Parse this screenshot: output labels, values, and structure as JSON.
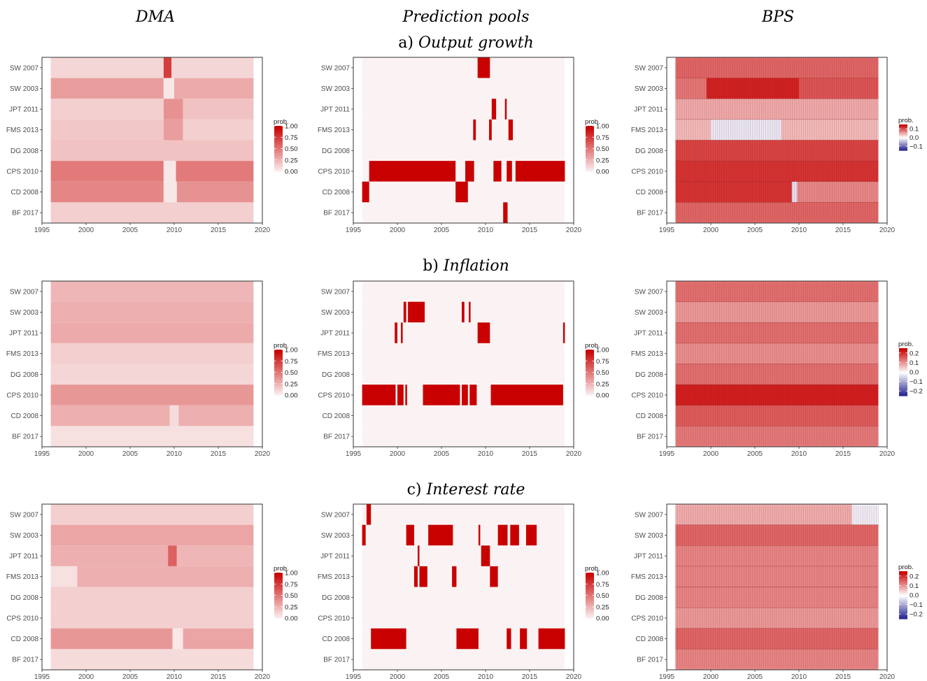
{
  "column_titles": [
    "DMA",
    "Prediction pools",
    "BPS"
  ],
  "row_titles": [
    {
      "prefix": "a)",
      "label": "Output growth"
    },
    {
      "prefix": "b)",
      "label": "Inflation"
    },
    {
      "prefix": "c)",
      "label": "Interest rate"
    }
  ],
  "legend_title": "prob.",
  "colors": {
    "high": "#c80000",
    "low": "#fbf3f3",
    "zero": "#ffffff",
    "negative": "#1a1a8c",
    "border": "#333333"
  },
  "chart_data": [
    {
      "type": "heatmap",
      "panel": "a) Output growth",
      "method": "DMA",
      "models": [
        "SW 2007",
        "SW 2003",
        "JPT 2011",
        "FMS 2013",
        "DG 2008",
        "CPS 2010",
        "CD 2008",
        "BF 2017"
      ],
      "x_ticks": [
        1995,
        2000,
        2005,
        2010,
        2015,
        2020
      ],
      "xlim": [
        1995,
        2020
      ],
      "period": [
        1996,
        2019
      ],
      "legend": {
        "ticks": [
          "1.00",
          "0.75",
          "0.50",
          "0.25",
          "0.00"
        ],
        "range": [
          0,
          1
        ]
      },
      "levels": [
        [
          [
            1996,
            2008.8,
            0.12
          ],
          [
            2008.8,
            2009.7,
            0.75
          ],
          [
            2009.7,
            2019,
            0.12
          ]
        ],
        [
          [
            1996,
            2008.8,
            0.35
          ],
          [
            2008.8,
            2010,
            0.05
          ],
          [
            2010,
            2019,
            0.3
          ]
        ],
        [
          [
            1996,
            2008.8,
            0.15
          ],
          [
            2008.8,
            2011,
            0.4
          ],
          [
            2011,
            2019,
            0.2
          ]
        ],
        [
          [
            1996,
            2008.8,
            0.18
          ],
          [
            2008.8,
            2011,
            0.35
          ],
          [
            2011,
            2019,
            0.15
          ]
        ],
        [
          [
            1996,
            2019,
            0.2
          ]
        ],
        [
          [
            1996,
            2008.8,
            0.5
          ],
          [
            2008.8,
            2010.2,
            0.05
          ],
          [
            2010.2,
            2019,
            0.5
          ]
        ],
        [
          [
            1996,
            2008.8,
            0.45
          ],
          [
            2008.8,
            2010.3,
            0.05
          ],
          [
            2010.3,
            2019,
            0.4
          ]
        ],
        [
          [
            1996,
            2019,
            0.15
          ]
        ]
      ]
    },
    {
      "type": "heatmap",
      "panel": "a) Output growth",
      "method": "Prediction pools",
      "models": [
        "SW 2007",
        "SW 2003",
        "JPT 2011",
        "FMS 2013",
        "DG 2008",
        "CPS 2010",
        "CD 2008",
        "BF 2017"
      ],
      "x_ticks": [
        1995,
        2000,
        2005,
        2010,
        2015,
        2020
      ],
      "xlim": [
        1995,
        2020
      ],
      "period": [
        1996,
        2019
      ],
      "legend": {
        "ticks": [
          "1.00",
          "0.75",
          "0.50",
          "0.25",
          "0.00"
        ],
        "range": [
          0,
          1
        ]
      },
      "levels": [
        [
          [
            2009.1,
            2010.5,
            1
          ]
        ],
        [],
        [
          [
            2010.7,
            2011.2,
            1
          ],
          [
            2012.2,
            2012.4,
            1
          ]
        ],
        [
          [
            2008.6,
            2008.9,
            1
          ],
          [
            2010.4,
            2010.7,
            1
          ],
          [
            2012.6,
            2013.1,
            1
          ]
        ],
        [],
        [
          [
            1996.8,
            2006.6,
            1
          ],
          [
            2007.7,
            2008.7,
            1
          ],
          [
            2010.9,
            2011.8,
            1
          ],
          [
            2012.4,
            2013,
            1
          ],
          [
            2013.4,
            2019,
            1
          ]
        ],
        [
          [
            1996,
            1996.8,
            1
          ],
          [
            2006.6,
            2008,
            1
          ]
        ],
        [
          [
            2012,
            2012.5,
            1
          ]
        ]
      ]
    },
    {
      "type": "heatmap",
      "panel": "a) Output growth",
      "method": "BPS",
      "models": [
        "SW 2007",
        "SW 2003",
        "JPT 2011",
        "FMS 2013",
        "DG 2008",
        "CPS 2010",
        "CD 2008",
        "BF 2017"
      ],
      "x_ticks": [
        1995,
        2000,
        2005,
        2010,
        2015,
        2020
      ],
      "xlim": [
        1995,
        2020
      ],
      "period": [
        1996,
        2019
      ],
      "legend": {
        "ticks": [
          "0.1",
          "0.0",
          "−0.1"
        ],
        "range": [
          -0.15,
          0.15
        ]
      },
      "levels": [
        [
          [
            1996,
            2019,
            0.09
          ]
        ],
        [
          [
            1996,
            1999.5,
            0.08
          ],
          [
            1999.5,
            2010,
            0.13
          ],
          [
            2010,
            2019,
            0.1
          ]
        ],
        [
          [
            1996,
            2019,
            0.05
          ]
        ],
        [
          [
            1996,
            2000,
            0.04
          ],
          [
            2000,
            2008,
            -0.015
          ],
          [
            2008,
            2019,
            0.04
          ]
        ],
        [
          [
            1996,
            2019,
            0.11
          ]
        ],
        [
          [
            1996,
            2019,
            0.12
          ]
        ],
        [
          [
            1996,
            2009.2,
            0.12
          ],
          [
            2009.2,
            2009.8,
            -0.02
          ],
          [
            2009.8,
            2019,
            0.07
          ]
        ],
        [
          [
            1996,
            2019,
            0.09
          ]
        ]
      ]
    },
    {
      "type": "heatmap",
      "panel": "b) Inflation",
      "method": "DMA",
      "models": [
        "SW 2007",
        "SW 2003",
        "JPT 2011",
        "FMS 2013",
        "DG 2008",
        "CPS 2010",
        "CD 2008",
        "BF 2017"
      ],
      "x_ticks": [
        1995,
        2000,
        2005,
        2010,
        2015,
        2020
      ],
      "xlim": [
        1995,
        2020
      ],
      "period": [
        1996,
        2019
      ],
      "legend": {
        "ticks": [
          "1.00",
          "0.75",
          "0.50",
          "0.25",
          "0.00"
        ],
        "range": [
          0,
          1
        ]
      },
      "levels": [
        [
          [
            1996,
            2019,
            0.25
          ]
        ],
        [
          [
            1996,
            2019,
            0.28
          ]
        ],
        [
          [
            1996,
            2019,
            0.3
          ]
        ],
        [
          [
            1996,
            2019,
            0.15
          ]
        ],
        [
          [
            1996,
            2019,
            0.12
          ]
        ],
        [
          [
            1996,
            2019,
            0.38
          ]
        ],
        [
          [
            1996,
            2009.5,
            0.28
          ],
          [
            2009.5,
            2010.5,
            0.1
          ],
          [
            2010.5,
            2019,
            0.28
          ]
        ],
        [
          [
            1996,
            2019,
            0.08
          ]
        ]
      ]
    },
    {
      "type": "heatmap",
      "panel": "b) Inflation",
      "method": "Prediction pools",
      "models": [
        "SW 2007",
        "SW 2003",
        "JPT 2011",
        "FMS 2013",
        "DG 2008",
        "CPS 2010",
        "CD 2008",
        "BF 2017"
      ],
      "x_ticks": [
        1995,
        2000,
        2005,
        2010,
        2015,
        2020
      ],
      "xlim": [
        1995,
        2020
      ],
      "period": [
        1996,
        2019
      ],
      "legend": {
        "ticks": [
          "1.00",
          "0.75",
          "0.50",
          "0.25",
          "0.00"
        ],
        "range": [
          0,
          1
        ]
      },
      "levels": [
        [],
        [
          [
            2000.7,
            2001,
            1
          ],
          [
            2001.2,
            2003.1,
            1
          ],
          [
            2007.3,
            2007.6,
            1
          ],
          [
            2008.1,
            2008.3,
            1
          ]
        ],
        [
          [
            1999.7,
            2000,
            1
          ],
          [
            2000.4,
            2000.6,
            1
          ],
          [
            2009.1,
            2010.5,
            1
          ],
          [
            2018.8,
            2019,
            1
          ]
        ],
        [],
        [],
        [
          [
            1996,
            1999.8,
            1
          ],
          [
            2000,
            2000.7,
            1
          ],
          [
            2000.9,
            2001.1,
            1
          ],
          [
            2002.9,
            2007.1,
            1
          ],
          [
            2007.3,
            2008,
            1
          ],
          [
            2008.2,
            2009,
            1
          ],
          [
            2010.6,
            2018.8,
            1
          ]
        ],
        [],
        []
      ]
    },
    {
      "type": "heatmap",
      "panel": "b) Inflation",
      "method": "BPS",
      "models": [
        "SW 2007",
        "SW 2003",
        "JPT 2011",
        "FMS 2013",
        "DG 2008",
        "CPS 2010",
        "CD 2008",
        "BF 2017"
      ],
      "x_ticks": [
        1995,
        2000,
        2005,
        2010,
        2015,
        2020
      ],
      "xlim": [
        1995,
        2020
      ],
      "period": [
        1996,
        2019
      ],
      "legend": {
        "ticks": [
          "0.2",
          "0.1",
          "0.0",
          "−0.1",
          "−0.2"
        ],
        "range": [
          -0.25,
          0.25
        ]
      },
      "levels": [
        [
          [
            1996,
            2019,
            0.14
          ]
        ],
        [
          [
            1996,
            2019,
            0.1
          ]
        ],
        [
          [
            1996,
            2019,
            0.14
          ]
        ],
        [
          [
            1996,
            2019,
            0.11
          ]
        ],
        [
          [
            1996,
            2019,
            0.14
          ]
        ],
        [
          [
            1996,
            2019,
            0.22
          ]
        ],
        [
          [
            1996,
            2019,
            0.16
          ]
        ],
        [
          [
            1996,
            2019,
            0.13
          ]
        ]
      ]
    },
    {
      "type": "heatmap",
      "panel": "c) Interest rate",
      "method": "DMA",
      "models": [
        "SW 2007",
        "SW 2003",
        "JPT 2011",
        "FMS 2013",
        "DG 2008",
        "CPS 2010",
        "CD 2008",
        "BF 2017"
      ],
      "x_ticks": [
        1995,
        2000,
        2005,
        2010,
        2015,
        2020
      ],
      "xlim": [
        1995,
        2020
      ],
      "period": [
        1996,
        2019
      ],
      "legend": {
        "ticks": [
          "1.00",
          "0.75",
          "0.50",
          "0.25",
          "0.00"
        ],
        "range": [
          0,
          1
        ]
      },
      "levels": [
        [
          [
            1996,
            2019,
            0.15
          ]
        ],
        [
          [
            1996,
            2019,
            0.32
          ]
        ],
        [
          [
            1996,
            2009.3,
            0.28
          ],
          [
            2009.3,
            2010.3,
            0.6
          ],
          [
            2010.3,
            2019,
            0.25
          ]
        ],
        [
          [
            1996,
            1999,
            0.08
          ],
          [
            1999,
            2019,
            0.28
          ]
        ],
        [
          [
            1996,
            2019,
            0.15
          ]
        ],
        [
          [
            1996,
            2019,
            0.15
          ]
        ],
        [
          [
            1996,
            2009.8,
            0.38
          ],
          [
            2009.8,
            2011,
            0.05
          ],
          [
            2011,
            2019,
            0.32
          ]
        ],
        [
          [
            1996,
            2019,
            0.1
          ]
        ]
      ]
    },
    {
      "type": "heatmap",
      "panel": "c) Interest rate",
      "method": "Prediction pools",
      "models": [
        "SW 2007",
        "SW 2003",
        "JPT 2011",
        "FMS 2013",
        "DG 2008",
        "CPS 2010",
        "CD 2008",
        "BF 2017"
      ],
      "x_ticks": [
        1995,
        2000,
        2005,
        2010,
        2015,
        2020
      ],
      "xlim": [
        1995,
        2020
      ],
      "period": [
        1996,
        2019
      ],
      "legend": {
        "ticks": [
          "1.00",
          "0.75",
          "0.50",
          "0.25",
          "0.00"
        ],
        "range": [
          0,
          1
        ]
      },
      "levels": [
        [
          [
            1996.5,
            1997,
            1
          ]
        ],
        [
          [
            1996,
            1996.4,
            1
          ],
          [
            2001,
            2001.9,
            1
          ],
          [
            2003.5,
            2006.3,
            1
          ],
          [
            2009.2,
            2009.4,
            1
          ],
          [
            2011.4,
            2012.5,
            1
          ],
          [
            2012.8,
            2013.8,
            1
          ],
          [
            2014.6,
            2015.8,
            1
          ]
        ],
        [
          [
            2002.3,
            2002.5,
            1
          ],
          [
            2009.5,
            2010.5,
            1
          ]
        ],
        [
          [
            2001.9,
            2002.3,
            1
          ],
          [
            2002.5,
            2003.4,
            1
          ],
          [
            2006.2,
            2006.7,
            1
          ],
          [
            2010.5,
            2011.4,
            1
          ]
        ],
        [],
        [],
        [
          [
            1997,
            2001,
            1
          ],
          [
            2006.7,
            2009.2,
            1
          ],
          [
            2012.4,
            2012.9,
            1
          ],
          [
            2013.9,
            2014.7,
            1
          ],
          [
            2016,
            2019,
            1
          ]
        ],
        []
      ]
    },
    {
      "type": "heatmap",
      "panel": "c) Interest rate",
      "method": "BPS",
      "models": [
        "SW 2007",
        "SW 2003",
        "JPT 2011",
        "FMS 2013",
        "DG 2008",
        "CPS 2010",
        "CD 2008",
        "BF 2017"
      ],
      "x_ticks": [
        1995,
        2000,
        2005,
        2010,
        2015,
        2020
      ],
      "xlim": [
        1995,
        2020
      ],
      "period": [
        1996,
        2019
      ],
      "legend": {
        "ticks": [
          "0.2",
          "0.1",
          "0.0",
          "−0.1",
          "−0.2"
        ],
        "range": [
          -0.25,
          0.25
        ]
      },
      "levels": [
        [
          [
            1996,
            2016,
            0.08
          ],
          [
            2016,
            2019,
            -0.02
          ]
        ],
        [
          [
            1996,
            2019,
            0.15
          ]
        ],
        [
          [
            1996,
            2019,
            0.12
          ]
        ],
        [
          [
            1996,
            2019,
            0.12
          ]
        ],
        [
          [
            1996,
            2019,
            0.12
          ]
        ],
        [
          [
            1996,
            2019,
            0.1
          ]
        ],
        [
          [
            1996,
            2019,
            0.15
          ]
        ],
        [
          [
            1996,
            2019,
            0.12
          ]
        ]
      ]
    }
  ]
}
